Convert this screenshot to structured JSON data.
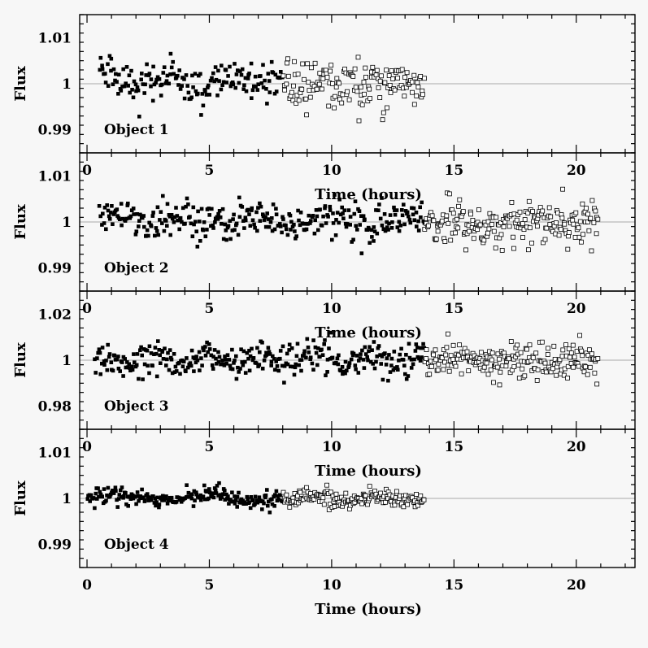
{
  "chart_data": [
    {
      "type": "scatter",
      "label": "Object 1",
      "ylabel": "Flux",
      "xlabel": "Time (hours)",
      "xlim": [
        -0.3,
        22.4
      ],
      "ylim": [
        0.985,
        1.015
      ],
      "yticks": [
        0.99,
        1,
        1.01
      ],
      "ytick_labels": [
        "0.99",
        "1",
        "1.01"
      ],
      "xticks": [
        0,
        5,
        10,
        15,
        20
      ],
      "xtick_labels": [
        "0",
        "5",
        "10",
        "15",
        "20"
      ],
      "reference_line": 1,
      "series": [
        {
          "marker": "filled-square",
          "x_range": [
            0.5,
            8.0
          ],
          "n": 170,
          "center": 1.0004,
          "sigma": 0.0021,
          "amplitude": 0.0015,
          "period": 2.6
        },
        {
          "marker": "open-square",
          "x_range": [
            8.0,
            13.8
          ],
          "n": 150,
          "center": 1.0,
          "sigma": 0.0026,
          "amplitude": 0.0005,
          "period": 3.0
        }
      ]
    },
    {
      "type": "scatter",
      "label": "Object 2",
      "ylabel": "Flux",
      "xlabel": "Time (hours)",
      "xlim": [
        -0.3,
        22.4
      ],
      "ylim": [
        0.985,
        1.015
      ],
      "yticks": [
        0.99,
        1,
        1.01
      ],
      "ytick_labels": [
        "0.99",
        "1",
        "1.01"
      ],
      "xticks": [
        0,
        5,
        10,
        15,
        20
      ],
      "xtick_labels": [
        "0",
        "5",
        "10",
        "15",
        "20"
      ],
      "reference_line": 1,
      "series": [
        {
          "marker": "filled-square",
          "x_range": [
            0.5,
            13.8
          ],
          "n": 320,
          "center": 1.0003,
          "sigma": 0.0019,
          "amplitude": 0.001,
          "period": 3.1
        },
        {
          "marker": "open-square",
          "x_range": [
            13.8,
            20.9
          ],
          "n": 200,
          "center": 1.0,
          "sigma": 0.0024,
          "amplitude": 0.0004,
          "period": 3.4
        }
      ]
    },
    {
      "type": "scatter",
      "label": "Object 3",
      "ylabel": "Flux",
      "xlabel": "Time (hours)",
      "xlim": [
        -0.3,
        22.4
      ],
      "ylim": [
        0.97,
        1.03
      ],
      "yticks": [
        0.98,
        1,
        1.02
      ],
      "ytick_labels": [
        "0.98",
        "1",
        "1.02"
      ],
      "xticks": [
        0,
        5,
        10,
        15,
        20
      ],
      "xtick_labels": [
        "0",
        "5",
        "10",
        "15",
        "20"
      ],
      "reference_line": 1,
      "series": [
        {
          "marker": "filled-square",
          "x_range": [
            0.3,
            13.8
          ],
          "n": 330,
          "center": 1.0,
          "sigma": 0.0035,
          "amplitude": 0.002,
          "period": 2.2
        },
        {
          "marker": "open-square",
          "x_range": [
            13.8,
            20.9
          ],
          "n": 200,
          "center": 1.0,
          "sigma": 0.0038,
          "amplitude": 0.0015,
          "period": 2.4
        }
      ]
    },
    {
      "type": "scatter",
      "label": "Object 4",
      "ylabel": "Flux",
      "xlabel": "Time (hours)",
      "xlim": [
        -0.3,
        22.4
      ],
      "ylim": [
        0.985,
        1.015
      ],
      "yticks": [
        0.99,
        1,
        1.01
      ],
      "ytick_labels": [
        "0.99",
        "1",
        "1.01"
      ],
      "xticks": [
        0,
        5,
        10,
        15,
        20
      ],
      "xtick_labels": [
        "0",
        "5",
        "10",
        "15",
        "20"
      ],
      "reference_line": 1,
      "series": [
        {
          "marker": "filled-square",
          "x_range": [
            0.0,
            8.0
          ],
          "n": 220,
          "center": 1.0001,
          "sigma": 0.0009,
          "amplitude": 0.0006,
          "period": 4.0
        },
        {
          "marker": "open-square",
          "x_range": [
            8.0,
            13.8
          ],
          "n": 160,
          "center": 1.0,
          "sigma": 0.0009,
          "amplitude": 0.0003,
          "period": 2.8
        }
      ]
    }
  ]
}
